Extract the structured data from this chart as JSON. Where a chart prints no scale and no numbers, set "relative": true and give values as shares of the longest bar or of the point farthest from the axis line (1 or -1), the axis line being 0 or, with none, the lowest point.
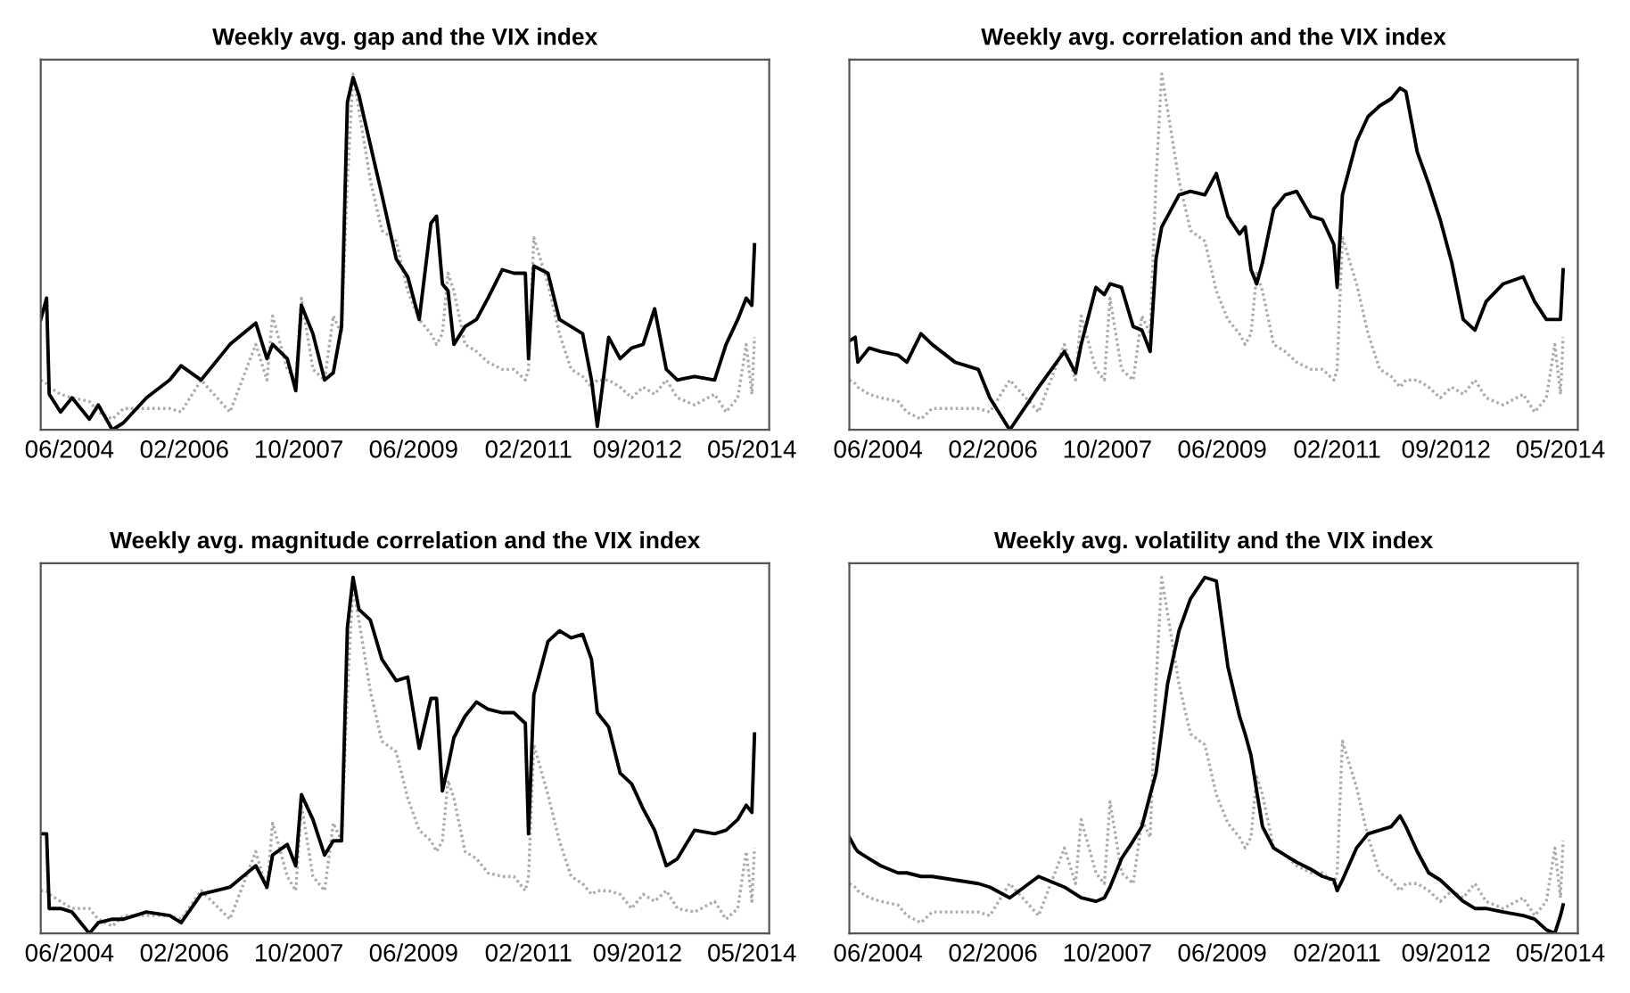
{
  "chart_data": [
    {
      "type": "line",
      "title": "Weekly avg. gap and the VIX index",
      "relative": true,
      "tick_labels": "x",
      "grid": false,
      "legend": false,
      "x": [
        "2004-01-01",
        "2004-02-01",
        "2004-02-15",
        "2004-04-15",
        "2004-06-15",
        "2004-09-15",
        "2004-11-01",
        "2005-01-15",
        "2005-03-15",
        "2005-07-15",
        "2005-11-15",
        "2006-01-15",
        "2006-05-01",
        "2006-10-01",
        "2007-02-15",
        "2007-04-15",
        "2007-05-15",
        "2007-08-01",
        "2007-09-15",
        "2007-10-15",
        "2007-12-15",
        "2008-02-15",
        "2008-04-01",
        "2008-05-15",
        "2008-06-15",
        "2008-07-15",
        "2008-08-15",
        "2008-10-15",
        "2008-12-15",
        "2009-03-01",
        "2009-05-01",
        "2009-07-01",
        "2009-09-01",
        "2009-10-01",
        "2009-11-01",
        "2009-12-01",
        "2010-01-01",
        "2010-03-01",
        "2010-05-01",
        "2010-07-01",
        "2010-09-15",
        "2010-11-15",
        "2011-01-15",
        "2011-02-01",
        "2011-03-01",
        "2011-05-15",
        "2011-07-15",
        "2011-09-15",
        "2011-11-15",
        "2012-01-01",
        "2012-02-01",
        "2012-04-01",
        "2012-06-01",
        "2012-08-01",
        "2012-10-01",
        "2012-12-01",
        "2013-02-01",
        "2013-04-01",
        "2013-07-01",
        "2013-10-15",
        "2013-12-15",
        "2014-02-15",
        "2014-04-01",
        "2014-05-01",
        "2014-05-15"
      ],
      "xlim": [
        "2004-01-01",
        "2014-08-01"
      ],
      "xticks": [
        {
          "value": "2004-06-01",
          "label": "06/2004"
        },
        {
          "value": "2006-02-01",
          "label": "02/2006"
        },
        {
          "value": "2007-10-01",
          "label": "10/2007"
        },
        {
          "value": "2009-06-01",
          "label": "06/2009"
        },
        {
          "value": "2011-02-01",
          "label": "02/2011"
        },
        {
          "value": "2012-09-01",
          "label": "09/2012"
        },
        {
          "value": "2014-05-01",
          "label": "05/2014"
        }
      ],
      "series": [
        {
          "color": "#aaaaaa",
          "line_style": "dotted",
          "values": [
            0.14,
            0.13,
            0.12,
            0.1,
            0.09,
            0.08,
            0.05,
            0.03,
            0.06,
            0.06,
            0.06,
            0.05,
            0.14,
            0.05,
            0.24,
            0.14,
            0.32,
            0.17,
            0.14,
            0.37,
            0.17,
            0.14,
            0.32,
            0.27,
            0.7,
            1.0,
            0.9,
            0.7,
            0.56,
            0.53,
            0.39,
            0.31,
            0.27,
            0.24,
            0.27,
            0.44,
            0.39,
            0.24,
            0.22,
            0.19,
            0.17,
            0.17,
            0.14,
            0.17,
            0.54,
            0.41,
            0.27,
            0.17,
            0.15,
            0.12,
            0.14,
            0.14,
            0.12,
            0.09,
            0.12,
            0.1,
            0.14,
            0.09,
            0.07,
            0.1,
            0.05,
            0.09,
            0.24,
            0.1,
            0.26
          ]
        },
        {
          "color": "#000000",
          "line_style": "solid",
          "values": [
            0.31,
            0.37,
            0.1,
            0.05,
            0.09,
            0.03,
            0.07,
            0.0,
            0.02,
            0.09,
            0.14,
            0.18,
            0.14,
            0.24,
            0.3,
            0.2,
            0.24,
            0.2,
            0.11,
            0.35,
            0.27,
            0.14,
            0.16,
            0.29,
            0.92,
            0.99,
            0.94,
            0.8,
            0.66,
            0.48,
            0.43,
            0.31,
            0.58,
            0.6,
            0.41,
            0.39,
            0.24,
            0.29,
            0.31,
            0.37,
            0.45,
            0.44,
            0.44,
            0.2,
            0.46,
            0.44,
            0.31,
            0.29,
            0.27,
            0.14,
            0.01,
            0.26,
            0.2,
            0.23,
            0.24,
            0.34,
            0.17,
            0.14,
            0.15,
            0.14,
            0.24,
            0.31,
            0.37,
            0.35,
            0.52
          ]
        }
      ]
    },
    {
      "type": "line",
      "title": "Weekly avg. correlation and the VIX index",
      "relative": true,
      "tick_labels": "x",
      "grid": false,
      "legend": false,
      "x": [
        "2004-01-01",
        "2004-02-01",
        "2004-02-15",
        "2004-04-15",
        "2004-06-15",
        "2004-09-15",
        "2004-11-01",
        "2005-01-15",
        "2005-03-15",
        "2005-07-15",
        "2005-11-15",
        "2006-01-15",
        "2006-05-01",
        "2006-10-01",
        "2007-02-15",
        "2007-04-15",
        "2007-05-15",
        "2007-08-01",
        "2007-09-15",
        "2007-10-15",
        "2007-12-15",
        "2008-02-15",
        "2008-04-01",
        "2008-05-15",
        "2008-06-15",
        "2008-07-15",
        "2008-08-15",
        "2008-10-15",
        "2008-12-15",
        "2009-03-01",
        "2009-05-01",
        "2009-07-01",
        "2009-09-01",
        "2009-10-01",
        "2009-11-01",
        "2009-12-01",
        "2010-01-01",
        "2010-03-01",
        "2010-05-01",
        "2010-07-01",
        "2010-09-15",
        "2010-11-15",
        "2011-01-15",
        "2011-02-01",
        "2011-03-01",
        "2011-05-15",
        "2011-07-15",
        "2011-09-15",
        "2011-11-15",
        "2012-01-01",
        "2012-02-01",
        "2012-04-01",
        "2012-06-01",
        "2012-08-01",
        "2012-10-01",
        "2012-12-01",
        "2013-02-01",
        "2013-04-01",
        "2013-07-01",
        "2013-10-15",
        "2013-12-15",
        "2014-02-15",
        "2014-04-01",
        "2014-05-01",
        "2014-05-15"
      ],
      "xlim": [
        "2004-01-01",
        "2014-08-01"
      ],
      "xticks": [
        {
          "value": "2004-06-01",
          "label": "06/2004"
        },
        {
          "value": "2006-02-01",
          "label": "02/2006"
        },
        {
          "value": "2007-10-01",
          "label": "10/2007"
        },
        {
          "value": "2009-06-01",
          "label": "06/2009"
        },
        {
          "value": "2011-02-01",
          "label": "02/2011"
        },
        {
          "value": "2012-09-01",
          "label": "09/2012"
        },
        {
          "value": "2014-05-01",
          "label": "05/2014"
        }
      ],
      "series": [
        {
          "color": "#aaaaaa",
          "line_style": "dotted",
          "values": [
            0.14,
            0.13,
            0.12,
            0.1,
            0.09,
            0.08,
            0.05,
            0.03,
            0.06,
            0.06,
            0.06,
            0.05,
            0.14,
            0.05,
            0.24,
            0.14,
            0.32,
            0.17,
            0.14,
            0.37,
            0.17,
            0.14,
            0.32,
            0.27,
            0.7,
            1.0,
            0.9,
            0.7,
            0.56,
            0.53,
            0.39,
            0.31,
            0.27,
            0.24,
            0.27,
            0.44,
            0.39,
            0.24,
            0.22,
            0.19,
            0.17,
            0.17,
            0.14,
            0.17,
            0.54,
            0.41,
            0.27,
            0.17,
            0.15,
            0.12,
            0.14,
            0.14,
            0.12,
            0.09,
            0.12,
            0.1,
            0.14,
            0.09,
            0.07,
            0.1,
            0.05,
            0.09,
            0.24,
            0.1,
            0.26
          ]
        },
        {
          "color": "#000000",
          "line_style": "solid",
          "values": [
            0.25,
            0.26,
            0.19,
            0.23,
            0.22,
            0.21,
            0.19,
            0.27,
            0.24,
            0.19,
            0.17,
            0.09,
            0.0,
            0.12,
            0.22,
            0.16,
            0.24,
            0.4,
            0.38,
            0.41,
            0.4,
            0.29,
            0.28,
            0.22,
            0.48,
            0.57,
            0.6,
            0.66,
            0.67,
            0.66,
            0.72,
            0.6,
            0.55,
            0.57,
            0.45,
            0.41,
            0.47,
            0.62,
            0.66,
            0.67,
            0.6,
            0.59,
            0.52,
            0.4,
            0.66,
            0.81,
            0.88,
            0.91,
            0.93,
            0.96,
            0.95,
            0.78,
            0.69,
            0.59,
            0.47,
            0.31,
            0.28,
            0.36,
            0.41,
            0.43,
            0.36,
            0.31,
            0.31,
            0.31,
            0.45
          ]
        }
      ]
    },
    {
      "type": "line",
      "title": "Weekly avg. magnitude correlation and the VIX index",
      "relative": true,
      "tick_labels": "x",
      "grid": false,
      "legend": false,
      "x": [
        "2004-01-01",
        "2004-02-01",
        "2004-02-15",
        "2004-04-15",
        "2004-06-15",
        "2004-09-15",
        "2004-11-01",
        "2005-01-15",
        "2005-03-15",
        "2005-07-15",
        "2005-11-15",
        "2006-01-15",
        "2006-05-01",
        "2006-10-01",
        "2007-02-15",
        "2007-04-15",
        "2007-05-15",
        "2007-08-01",
        "2007-09-15",
        "2007-10-15",
        "2007-12-15",
        "2008-02-15",
        "2008-04-01",
        "2008-05-15",
        "2008-06-15",
        "2008-07-15",
        "2008-08-15",
        "2008-10-15",
        "2008-12-15",
        "2009-03-01",
        "2009-05-01",
        "2009-07-01",
        "2009-09-01",
        "2009-10-01",
        "2009-11-01",
        "2009-12-01",
        "2010-01-01",
        "2010-03-01",
        "2010-05-01",
        "2010-07-01",
        "2010-09-15",
        "2010-11-15",
        "2011-01-15",
        "2011-02-01",
        "2011-03-01",
        "2011-05-15",
        "2011-07-15",
        "2011-09-15",
        "2011-11-15",
        "2012-01-01",
        "2012-02-01",
        "2012-04-01",
        "2012-06-01",
        "2012-08-01",
        "2012-10-01",
        "2012-12-01",
        "2013-02-01",
        "2013-04-01",
        "2013-07-01",
        "2013-10-15",
        "2013-12-15",
        "2014-02-15",
        "2014-04-01",
        "2014-05-01",
        "2014-05-15"
      ],
      "xlim": [
        "2004-01-01",
        "2014-08-01"
      ],
      "xticks": [
        {
          "value": "2004-06-01",
          "label": "06/2004"
        },
        {
          "value": "2006-02-01",
          "label": "02/2006"
        },
        {
          "value": "2007-10-01",
          "label": "10/2007"
        },
        {
          "value": "2009-06-01",
          "label": "06/2009"
        },
        {
          "value": "2011-02-01",
          "label": "02/2011"
        },
        {
          "value": "2012-09-01",
          "label": "09/2012"
        },
        {
          "value": "2014-05-01",
          "label": "05/2014"
        }
      ],
      "series": [
        {
          "color": "#aaaaaa",
          "line_style": "dotted",
          "values": [
            0.12,
            0.12,
            0.11,
            0.09,
            0.07,
            0.07,
            0.04,
            0.02,
            0.05,
            0.05,
            0.05,
            0.04,
            0.12,
            0.04,
            0.23,
            0.12,
            0.31,
            0.16,
            0.12,
            0.36,
            0.16,
            0.12,
            0.31,
            0.26,
            0.68,
            0.98,
            0.88,
            0.68,
            0.54,
            0.51,
            0.38,
            0.29,
            0.26,
            0.23,
            0.26,
            0.43,
            0.38,
            0.23,
            0.21,
            0.17,
            0.16,
            0.16,
            0.12,
            0.16,
            0.53,
            0.39,
            0.26,
            0.16,
            0.14,
            0.11,
            0.12,
            0.12,
            0.11,
            0.07,
            0.11,
            0.09,
            0.12,
            0.07,
            0.06,
            0.09,
            0.04,
            0.07,
            0.23,
            0.09,
            0.24
          ]
        },
        {
          "color": "#000000",
          "line_style": "solid",
          "values": [
            0.28,
            0.28,
            0.07,
            0.07,
            0.06,
            0.0,
            0.03,
            0.04,
            0.04,
            0.06,
            0.05,
            0.03,
            0.11,
            0.13,
            0.19,
            0.13,
            0.22,
            0.25,
            0.19,
            0.39,
            0.32,
            0.22,
            0.26,
            0.26,
            0.86,
            1.0,
            0.91,
            0.88,
            0.77,
            0.71,
            0.72,
            0.52,
            0.66,
            0.66,
            0.4,
            0.47,
            0.55,
            0.61,
            0.65,
            0.63,
            0.62,
            0.62,
            0.59,
            0.28,
            0.67,
            0.82,
            0.85,
            0.83,
            0.84,
            0.77,
            0.62,
            0.58,
            0.45,
            0.42,
            0.35,
            0.29,
            0.19,
            0.21,
            0.29,
            0.28,
            0.29,
            0.32,
            0.36,
            0.34,
            0.56
          ]
        }
      ]
    },
    {
      "type": "line",
      "title": "Weekly avg. volatility and the VIX index",
      "relative": true,
      "tick_labels": "x",
      "grid": false,
      "legend": false,
      "x": [
        "2004-01-01",
        "2004-02-01",
        "2004-02-15",
        "2004-04-15",
        "2004-06-15",
        "2004-09-15",
        "2004-11-01",
        "2005-01-15",
        "2005-03-15",
        "2005-07-15",
        "2005-11-15",
        "2006-01-15",
        "2006-05-01",
        "2006-10-01",
        "2007-02-15",
        "2007-04-15",
        "2007-05-15",
        "2007-08-01",
        "2007-09-15",
        "2007-10-15",
        "2007-12-15",
        "2008-02-15",
        "2008-04-01",
        "2008-05-15",
        "2008-06-15",
        "2008-07-15",
        "2008-08-15",
        "2008-10-15",
        "2008-12-15",
        "2009-03-01",
        "2009-05-01",
        "2009-07-01",
        "2009-09-01",
        "2009-10-01",
        "2009-11-01",
        "2009-12-01",
        "2010-01-01",
        "2010-03-01",
        "2010-05-01",
        "2010-07-01",
        "2010-09-15",
        "2010-11-15",
        "2011-01-15",
        "2011-02-01",
        "2011-03-01",
        "2011-05-15",
        "2011-07-15",
        "2011-09-15",
        "2011-11-15",
        "2012-01-01",
        "2012-02-01",
        "2012-04-01",
        "2012-06-01",
        "2012-08-01",
        "2012-10-01",
        "2012-12-01",
        "2013-02-01",
        "2013-04-01",
        "2013-07-01",
        "2013-10-15",
        "2013-12-15",
        "2014-02-15",
        "2014-04-01",
        "2014-05-01",
        "2014-05-15"
      ],
      "xlim": [
        "2004-01-01",
        "2014-08-01"
      ],
      "xticks": [
        {
          "value": "2004-06-01",
          "label": "06/2004"
        },
        {
          "value": "2006-02-01",
          "label": "02/2006"
        },
        {
          "value": "2007-10-01",
          "label": "10/2007"
        },
        {
          "value": "2009-06-01",
          "label": "06/2009"
        },
        {
          "value": "2011-02-01",
          "label": "02/2011"
        },
        {
          "value": "2012-09-01",
          "label": "09/2012"
        },
        {
          "value": "2014-05-01",
          "label": "05/2014"
        }
      ],
      "series": [
        {
          "color": "#aaaaaa",
          "line_style": "dotted",
          "values": [
            0.14,
            0.13,
            0.12,
            0.1,
            0.09,
            0.08,
            0.05,
            0.03,
            0.06,
            0.06,
            0.06,
            0.05,
            0.14,
            0.05,
            0.24,
            0.14,
            0.32,
            0.17,
            0.14,
            0.37,
            0.17,
            0.14,
            0.32,
            0.27,
            0.7,
            1.0,
            0.9,
            0.7,
            0.56,
            0.53,
            0.39,
            0.31,
            0.27,
            0.24,
            0.27,
            0.44,
            0.39,
            0.24,
            0.22,
            0.19,
            0.17,
            0.17,
            0.14,
            0.17,
            0.54,
            0.41,
            0.27,
            0.17,
            0.15,
            0.12,
            0.14,
            0.14,
            0.12,
            0.09,
            0.12,
            0.1,
            0.14,
            0.09,
            0.07,
            0.1,
            0.05,
            0.09,
            0.24,
            0.1,
            0.26
          ]
        },
        {
          "color": "#000000",
          "line_style": "solid",
          "values": [
            0.27,
            0.24,
            0.23,
            0.21,
            0.19,
            0.17,
            0.17,
            0.16,
            0.16,
            0.15,
            0.14,
            0.13,
            0.1,
            0.16,
            0.13,
            0.11,
            0.1,
            0.09,
            0.1,
            0.13,
            0.21,
            0.26,
            0.3,
            0.39,
            0.45,
            0.57,
            0.7,
            0.85,
            0.94,
            1.0,
            0.99,
            0.75,
            0.61,
            0.56,
            0.5,
            0.4,
            0.3,
            0.24,
            0.22,
            0.2,
            0.18,
            0.16,
            0.15,
            0.12,
            0.15,
            0.24,
            0.28,
            0.29,
            0.3,
            0.33,
            0.3,
            0.23,
            0.17,
            0.15,
            0.12,
            0.09,
            0.07,
            0.07,
            0.06,
            0.05,
            0.04,
            0.01,
            0.0,
            0.05,
            0.08
          ]
        }
      ]
    }
  ]
}
